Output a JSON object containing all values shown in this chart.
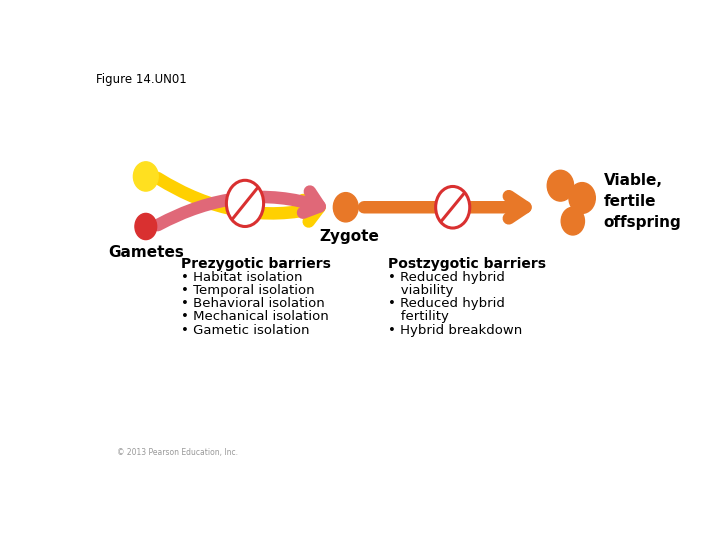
{
  "figure_label": "Figure 14.UN01",
  "copyright": "© 2013 Pearson Education, Inc.",
  "bg_color": "#ffffff",
  "zygote_label": "Zygote",
  "gametes_label": "Gametes",
  "viable_label": "Viable,\nfertile\noffspring",
  "prezygotic_title": "Prezygotic barriers",
  "prezygotic_bullets": [
    "• Habitat isolation",
    "• Temporal isolation",
    "• Behavioral isolation",
    "• Mechanical isolation",
    "• Gametic isolation"
  ],
  "postzygotic_title": "Postzygotic barriers",
  "postzygotic_bullets": [
    "• Reduced hybrid",
    "   viability",
    "• Reduced hybrid",
    "   fertility",
    "• Hybrid breakdown"
  ],
  "yellow_color": "#FFE020",
  "red_circle_color": "#D93030",
  "orange_color": "#E87828",
  "pink_arrow_color": "#E06070",
  "no_sign_color": "#D93030",
  "arrow_yellow": "#FFD000",
  "arrow_pink": "#E06878",
  "arrow_orange": "#E87828"
}
